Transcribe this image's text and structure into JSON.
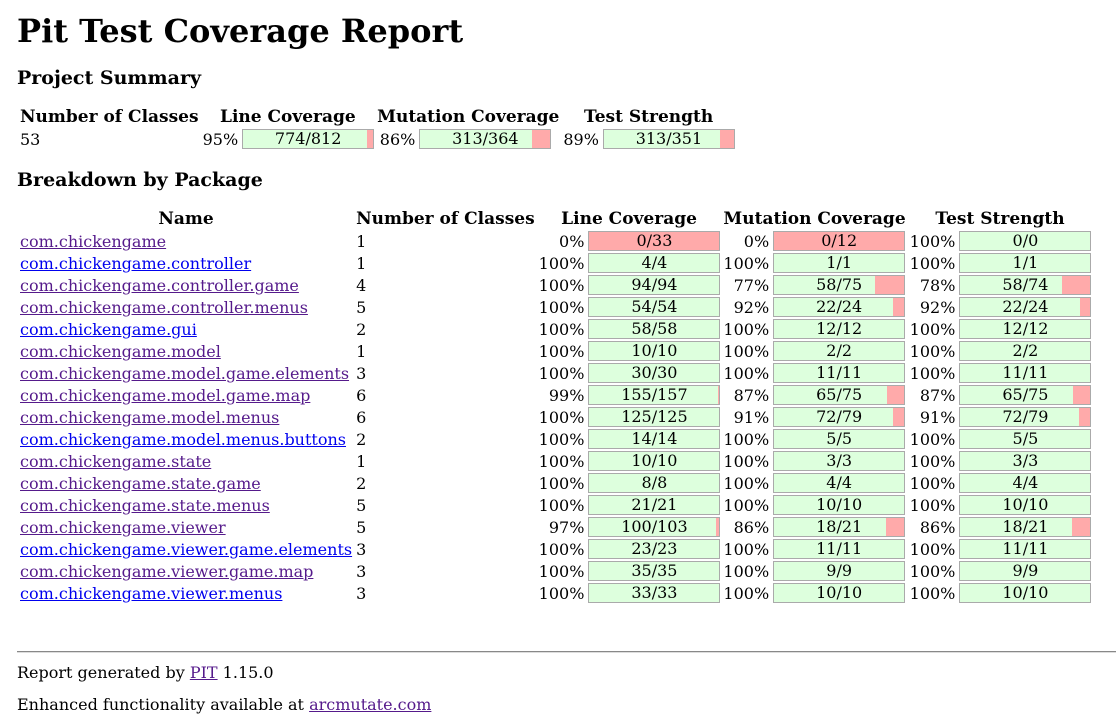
{
  "page_title": "Pit Test Coverage Report",
  "summary": {
    "heading": "Project Summary",
    "headers": [
      "Number of Classes",
      "Line Coverage",
      "Mutation Coverage",
      "Test Strength"
    ],
    "classes": "53",
    "line": {
      "pct": "95%",
      "text": "774/812",
      "fraction": 0.953
    },
    "mutation": {
      "pct": "86%",
      "text": "313/364",
      "fraction": 0.86
    },
    "strength": {
      "pct": "89%",
      "text": "313/351",
      "fraction": 0.892
    }
  },
  "breakdown": {
    "heading": "Breakdown by Package",
    "headers": [
      "Name",
      "Number of Classes",
      "Line Coverage",
      "Mutation Coverage",
      "Test Strength"
    ],
    "rows": [
      {
        "name": "com.chickengame",
        "visited": true,
        "classes": "1",
        "line_pct": "0%",
        "line_text": "0/33",
        "line_frac": 0,
        "mut_pct": "0%",
        "mut_text": "0/12",
        "mut_frac": 0,
        "str_pct": "100%",
        "str_text": "0/0",
        "str_frac": 1
      },
      {
        "name": "com.chickengame.controller",
        "visited": false,
        "classes": "1",
        "line_pct": "100%",
        "line_text": "4/4",
        "line_frac": 1,
        "mut_pct": "100%",
        "mut_text": "1/1",
        "mut_frac": 1,
        "str_pct": "100%",
        "str_text": "1/1",
        "str_frac": 1
      },
      {
        "name": "com.chickengame.controller.game",
        "visited": true,
        "classes": "4",
        "line_pct": "100%",
        "line_text": "94/94",
        "line_frac": 1,
        "mut_pct": "77%",
        "mut_text": "58/75",
        "mut_frac": 0.773,
        "str_pct": "78%",
        "str_text": "58/74",
        "str_frac": 0.784
      },
      {
        "name": "com.chickengame.controller.menus",
        "visited": true,
        "classes": "5",
        "line_pct": "100%",
        "line_text": "54/54",
        "line_frac": 1,
        "mut_pct": "92%",
        "mut_text": "22/24",
        "mut_frac": 0.917,
        "str_pct": "92%",
        "str_text": "22/24",
        "str_frac": 0.917
      },
      {
        "name": "com.chickengame.gui",
        "visited": false,
        "classes": "2",
        "line_pct": "100%",
        "line_text": "58/58",
        "line_frac": 1,
        "mut_pct": "100%",
        "mut_text": "12/12",
        "mut_frac": 1,
        "str_pct": "100%",
        "str_text": "12/12",
        "str_frac": 1
      },
      {
        "name": "com.chickengame.model",
        "visited": true,
        "classes": "1",
        "line_pct": "100%",
        "line_text": "10/10",
        "line_frac": 1,
        "mut_pct": "100%",
        "mut_text": "2/2",
        "mut_frac": 1,
        "str_pct": "100%",
        "str_text": "2/2",
        "str_frac": 1
      },
      {
        "name": "com.chickengame.model.game.elements",
        "visited": true,
        "classes": "3",
        "line_pct": "100%",
        "line_text": "30/30",
        "line_frac": 1,
        "mut_pct": "100%",
        "mut_text": "11/11",
        "mut_frac": 1,
        "str_pct": "100%",
        "str_text": "11/11",
        "str_frac": 1
      },
      {
        "name": "com.chickengame.model.game.map",
        "visited": true,
        "classes": "6",
        "line_pct": "99%",
        "line_text": "155/157",
        "line_frac": 0.987,
        "mut_pct": "87%",
        "mut_text": "65/75",
        "mut_frac": 0.867,
        "str_pct": "87%",
        "str_text": "65/75",
        "str_frac": 0.867
      },
      {
        "name": "com.chickengame.model.menus",
        "visited": true,
        "classes": "6",
        "line_pct": "100%",
        "line_text": "125/125",
        "line_frac": 1,
        "mut_pct": "91%",
        "mut_text": "72/79",
        "mut_frac": 0.911,
        "str_pct": "91%",
        "str_text": "72/79",
        "str_frac": 0.911
      },
      {
        "name": "com.chickengame.model.menus.buttons",
        "visited": false,
        "classes": "2",
        "line_pct": "100%",
        "line_text": "14/14",
        "line_frac": 1,
        "mut_pct": "100%",
        "mut_text": "5/5",
        "mut_frac": 1,
        "str_pct": "100%",
        "str_text": "5/5",
        "str_frac": 1
      },
      {
        "name": "com.chickengame.state",
        "visited": true,
        "classes": "1",
        "line_pct": "100%",
        "line_text": "10/10",
        "line_frac": 1,
        "mut_pct": "100%",
        "mut_text": "3/3",
        "mut_frac": 1,
        "str_pct": "100%",
        "str_text": "3/3",
        "str_frac": 1
      },
      {
        "name": "com.chickengame.state.game",
        "visited": true,
        "classes": "2",
        "line_pct": "100%",
        "line_text": "8/8",
        "line_frac": 1,
        "mut_pct": "100%",
        "mut_text": "4/4",
        "mut_frac": 1,
        "str_pct": "100%",
        "str_text": "4/4",
        "str_frac": 1
      },
      {
        "name": "com.chickengame.state.menus",
        "visited": true,
        "classes": "5",
        "line_pct": "100%",
        "line_text": "21/21",
        "line_frac": 1,
        "mut_pct": "100%",
        "mut_text": "10/10",
        "mut_frac": 1,
        "str_pct": "100%",
        "str_text": "10/10",
        "str_frac": 1
      },
      {
        "name": "com.chickengame.viewer",
        "visited": true,
        "classes": "5",
        "line_pct": "97%",
        "line_text": "100/103",
        "line_frac": 0.971,
        "mut_pct": "86%",
        "mut_text": "18/21",
        "mut_frac": 0.857,
        "str_pct": "86%",
        "str_text": "18/21",
        "str_frac": 0.857
      },
      {
        "name": "com.chickengame.viewer.game.elements",
        "visited": false,
        "classes": "3",
        "line_pct": "100%",
        "line_text": "23/23",
        "line_frac": 1,
        "mut_pct": "100%",
        "mut_text": "11/11",
        "mut_frac": 1,
        "str_pct": "100%",
        "str_text": "11/11",
        "str_frac": 1
      },
      {
        "name": "com.chickengame.viewer.game.map",
        "visited": true,
        "classes": "3",
        "line_pct": "100%",
        "line_text": "35/35",
        "line_frac": 1,
        "mut_pct": "100%",
        "mut_text": "9/9",
        "mut_frac": 1,
        "str_pct": "100%",
        "str_text": "9/9",
        "str_frac": 1
      },
      {
        "name": "com.chickengame.viewer.menus",
        "visited": false,
        "classes": "3",
        "line_pct": "100%",
        "line_text": "33/33",
        "line_frac": 1,
        "mut_pct": "100%",
        "mut_text": "10/10",
        "mut_frac": 1,
        "str_pct": "100%",
        "str_text": "10/10",
        "str_frac": 1
      }
    ]
  },
  "footer": {
    "report_prefix": "Report generated by ",
    "pit_link": "PIT",
    "version": " 1.15.0",
    "enhanced_prefix": "Enhanced functionality available at ",
    "arcmutate_link": "arcmutate.com"
  },
  "colors": {
    "covered": "#ddffdd",
    "uncovered": "#ffaaaa",
    "link": "#0000ee",
    "visited_link": "#551a8b"
  }
}
